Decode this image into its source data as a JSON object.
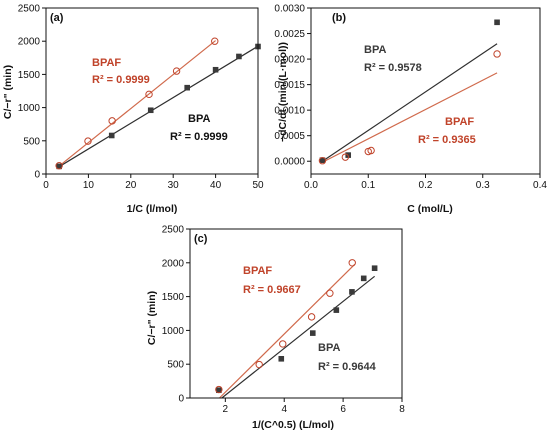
{
  "colors": {
    "bpa": "#3a3a3a",
    "bpaf": "#c0432a",
    "bpa_fit": "#2f2f2f",
    "bpaf_fit": "#d06a4c"
  },
  "chart_data": [
    {
      "type": "scatter",
      "panel": "(a)",
      "xlabel": "1/C (l/mol)",
      "ylabel": "C/−r\" (min)",
      "xlim": [
        0,
        50
      ],
      "ylim": [
        0,
        2500
      ],
      "xticks": [
        0,
        10,
        20,
        30,
        40,
        50
      ],
      "yticks": [
        0,
        500,
        1000,
        1500,
        2000,
        2500
      ],
      "series": [
        {
          "name": "BPA",
          "marker": "square",
          "color": "#3a3a3a",
          "x": [
            3.1,
            15.5,
            24.7,
            33.3,
            40.0,
            45.5,
            50.0
          ],
          "y": [
            115,
            580,
            960,
            1300,
            1570,
            1770,
            1920
          ],
          "fit": {
            "x": [
              3.1,
              50.0
            ],
            "y": [
              110,
              1925
            ]
          }
        },
        {
          "name": "BPAF",
          "marker": "circle",
          "color": "#c0432a",
          "x": [
            3.1,
            9.9,
            15.6,
            24.3,
            30.8,
            39.8
          ],
          "y": [
            125,
            495,
            800,
            1200,
            1550,
            2000
          ],
          "fit": {
            "x": [
              3.1,
              40.0
            ],
            "y": [
              120,
              2010
            ]
          }
        }
      ],
      "annotations": [
        {
          "series": "BPAF",
          "label": "BPAF",
          "r2": "R² = 0.9999"
        },
        {
          "series": "BPA",
          "label": "BPA",
          "r2": "R² = 0.9999"
        }
      ]
    },
    {
      "type": "scatter",
      "panel": "(b)",
      "xlabel": "C (mol/L)",
      "ylabel": "−dC/dt (min/(L·mol))",
      "xlim": [
        0,
        0.4
      ],
      "ylim": [
        -0.00025,
        0.003
      ],
      "xticks": [
        0.0,
        0.1,
        0.2,
        0.3,
        0.4
      ],
      "xtick_labels": [
        "0.0",
        "0.1",
        "0.2",
        "0.3",
        "0.4"
      ],
      "yticks": [
        0,
        0.0005,
        0.001,
        0.0015,
        0.002,
        0.0025,
        0.003
      ],
      "ytick_labels": [
        "0.0000",
        "0.0005",
        "0.0010",
        "0.0015",
        "0.0020",
        "0.0025",
        "0.0030"
      ],
      "series": [
        {
          "name": "BPA",
          "marker": "square",
          "color": "#3a3a3a",
          "x": [
            0.02,
            0.065,
            0.325
          ],
          "y": [
            2e-05,
            0.00012,
            0.00272
          ],
          "fit": {
            "x": [
              0.02,
              0.325
            ],
            "y": [
              0.0,
              0.0023
            ]
          }
        },
        {
          "name": "BPAF",
          "marker": "circle",
          "color": "#c0432a",
          "x": [
            0.02,
            0.06,
            0.1,
            0.105,
            0.325
          ],
          "y": [
            1e-05,
            8e-05,
            0.00019,
            0.00021,
            0.0021
          ],
          "fit": {
            "x": [
              0.02,
              0.325
            ],
            "y": [
              -2e-05,
              0.00173
            ]
          }
        }
      ],
      "annotations": [
        {
          "series": "BPA",
          "label": "BPA",
          "r2": "R² = 0.9578"
        },
        {
          "series": "BPAF",
          "label": "BPAF",
          "r2": "R² = 0.9365"
        }
      ]
    },
    {
      "type": "scatter",
      "panel": "(c)",
      "xlabel": "1/(C^0.5) (L/mol)",
      "ylabel": "C/−r\" (min)",
      "xlim": [
        0.8,
        8
      ],
      "ylim": [
        0,
        2500
      ],
      "xticks": [
        2,
        4,
        6,
        8
      ],
      "yticks": [
        0,
        500,
        1000,
        1500,
        2000,
        2500
      ],
      "series": [
        {
          "name": "BPA",
          "marker": "square",
          "color": "#3a3a3a",
          "x": [
            1.78,
            3.9,
            4.97,
            5.77,
            6.3,
            6.7,
            7.07
          ],
          "y": [
            115,
            580,
            960,
            1300,
            1570,
            1770,
            1920
          ],
          "fit": {
            "x": [
              1.88,
              7.07
            ],
            "y": [
              0,
              1800
            ]
          }
        },
        {
          "name": "BPAF",
          "marker": "circle",
          "color": "#c0432a",
          "x": [
            1.78,
            3.15,
            3.95,
            4.93,
            5.55,
            6.31
          ],
          "y": [
            125,
            495,
            800,
            1200,
            1550,
            2000
          ],
          "fit": {
            "x": [
              1.8,
              6.4
            ],
            "y": [
              0,
              1980
            ]
          }
        }
      ],
      "annotations": [
        {
          "series": "BPAF",
          "label": "BPAF",
          "r2": "R² = 0.9667"
        },
        {
          "series": "BPA",
          "label": "BPA",
          "r2": "R² = 0.9644"
        }
      ]
    }
  ]
}
